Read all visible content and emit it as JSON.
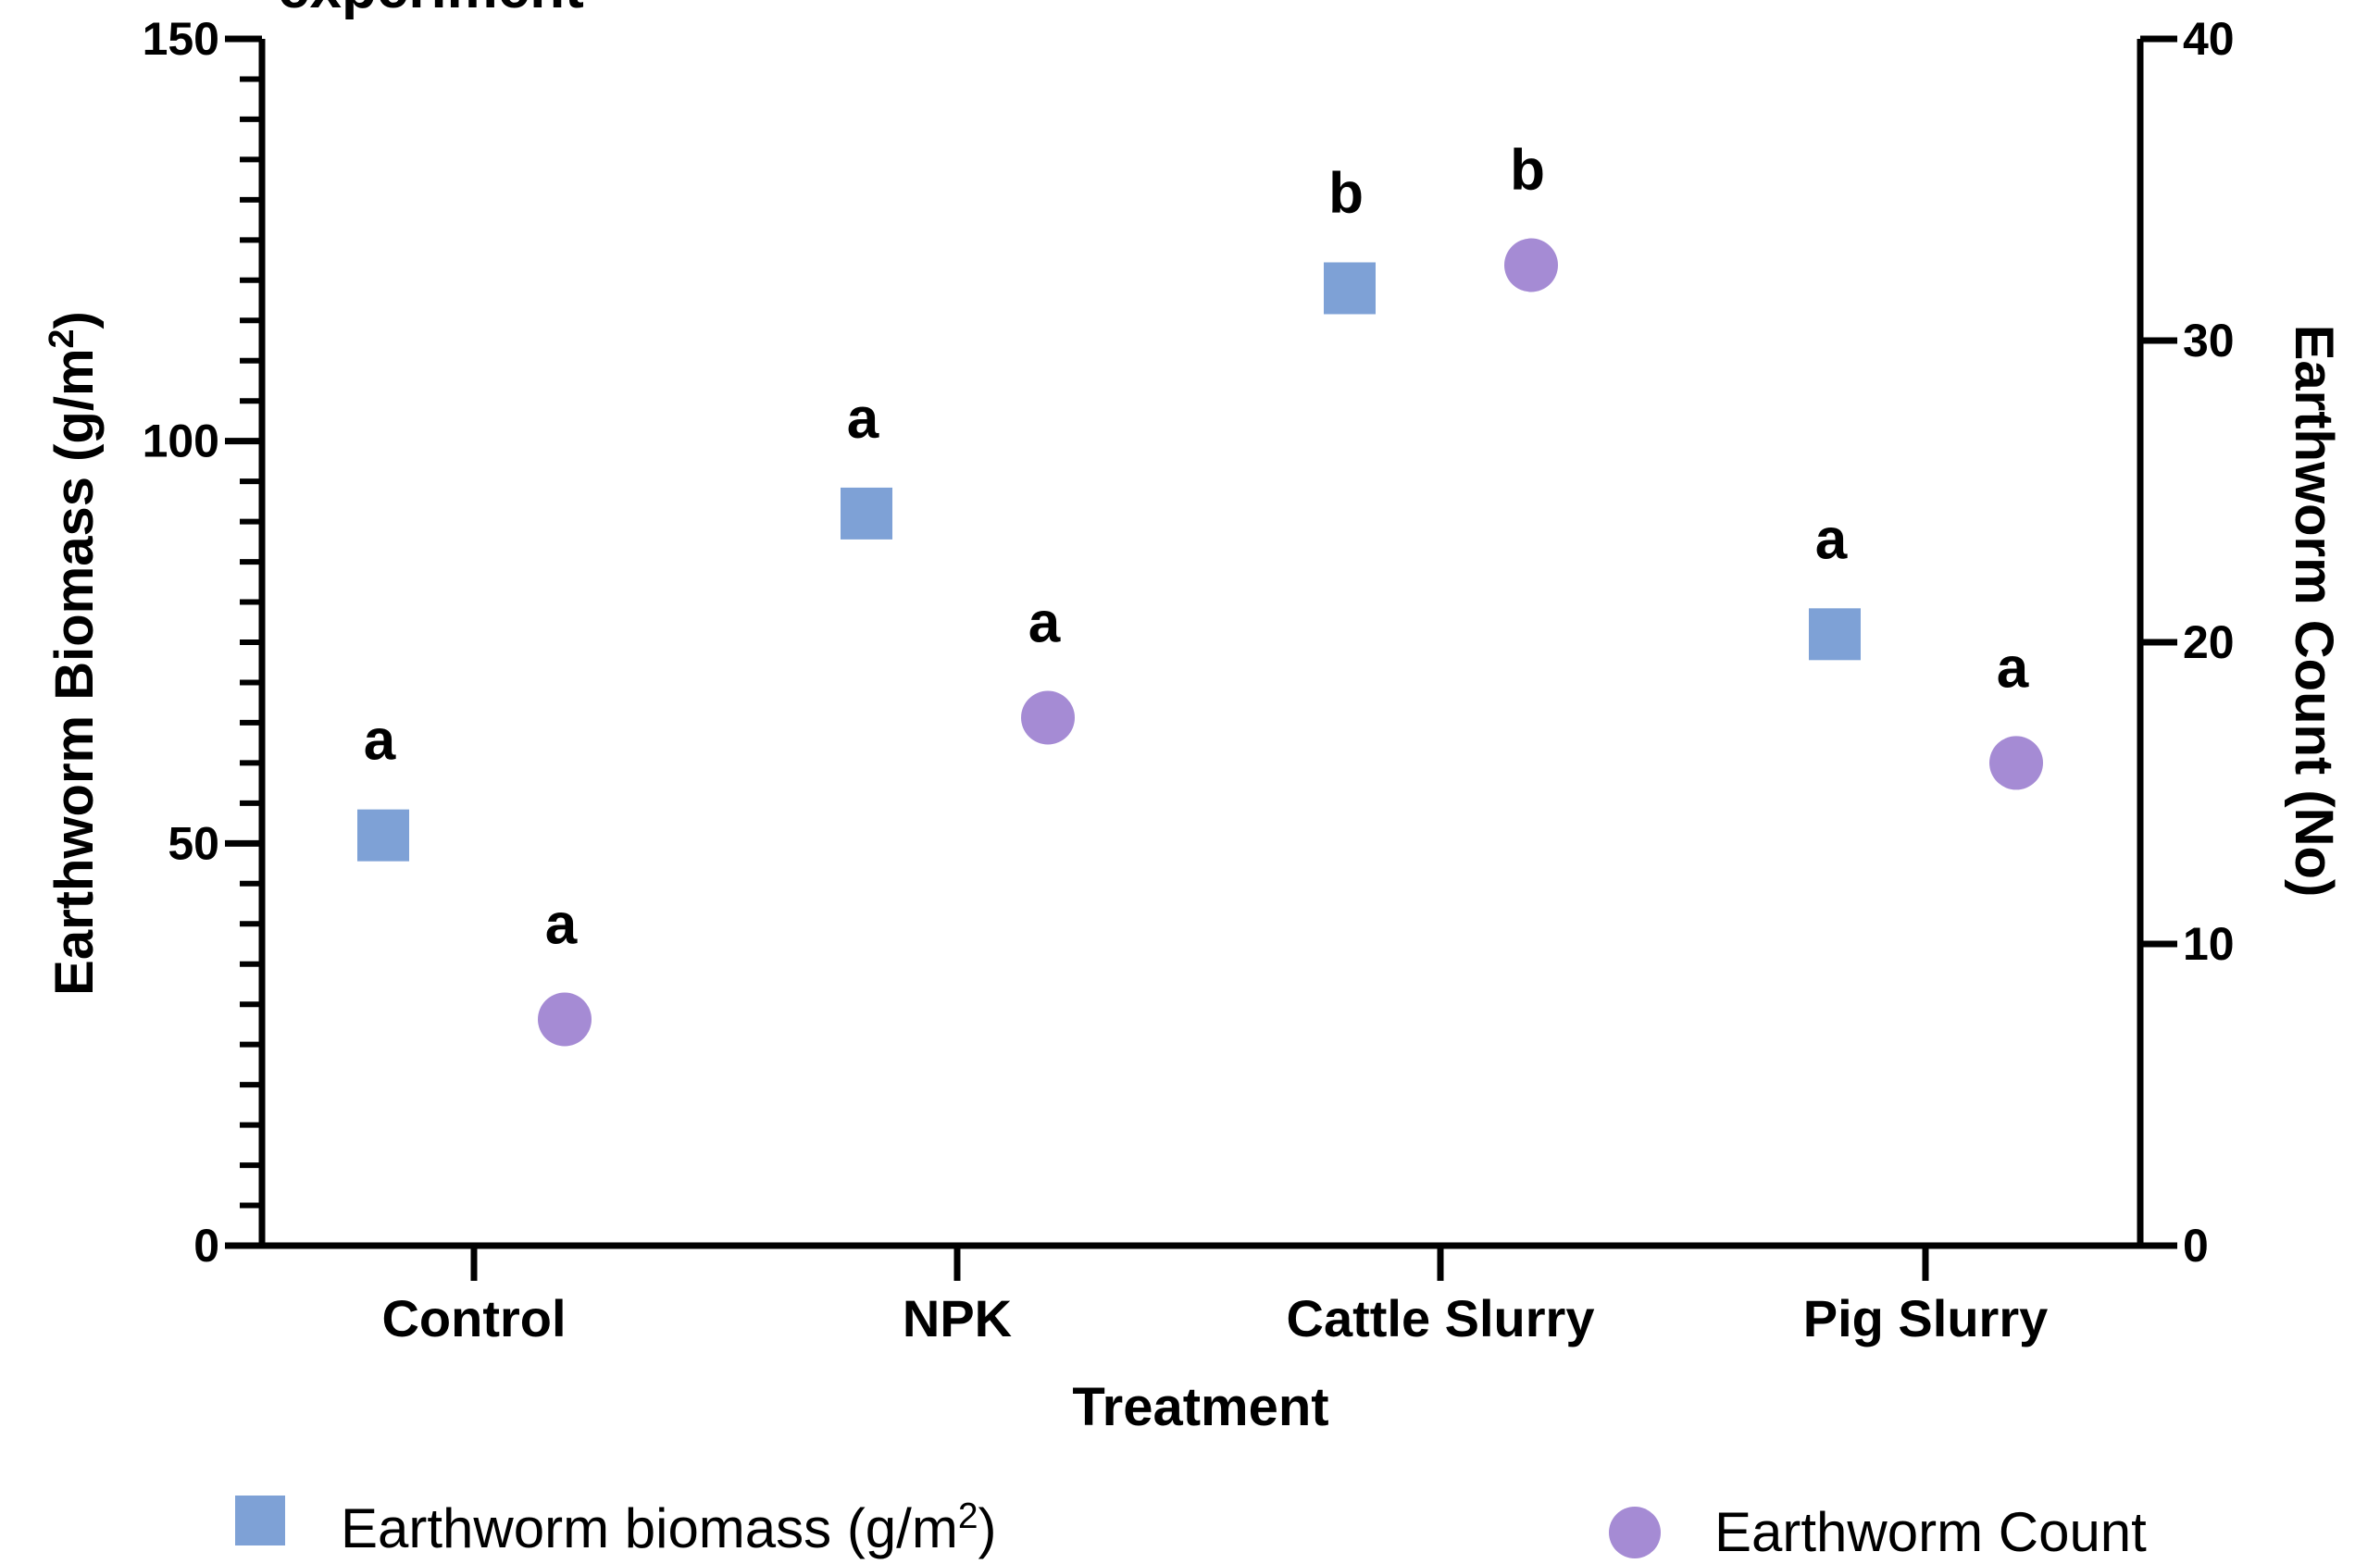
{
  "chart_data": {
    "type": "scatter",
    "title": "experiment",
    "categories": [
      "Control",
      "NPK",
      "Cattle Slurry",
      "Pig Slurry"
    ],
    "xlabel": "Treatment",
    "ylabel": "Earthworm Biomass (g/m2)",
    "ylabel_parts": {
      "main": "Earthworm Biomass (g/m",
      "sup": "2",
      "end": ")"
    },
    "y2label": "Earthworm Count (No)",
    "ylim": [
      0,
      150
    ],
    "y2lim": [
      0,
      40
    ],
    "y_ticks": [
      0,
      50,
      100,
      150
    ],
    "y2_ticks": [
      0,
      10,
      20,
      30,
      40
    ],
    "grid": false,
    "legend_position": "bottom",
    "series": [
      {
        "name": "Earthworm biomass (g/m2)",
        "legend_parts": {
          "main": "Earthworm biomass (g/m",
          "sup": "2",
          "end": ")"
        },
        "axis": "left",
        "marker": "square",
        "color": "#7ea1d6",
        "values": [
          51,
          91,
          119,
          76
        ],
        "significance": [
          "a",
          "a",
          "b",
          "a"
        ]
      },
      {
        "name": "Earthworm Count",
        "legend_parts": {
          "main": "Earthworm Count",
          "sup": "",
          "end": ""
        },
        "axis": "right",
        "marker": "circle",
        "color": "#a58bd4",
        "values": [
          7.5,
          17.5,
          32.5,
          16
        ],
        "significance": [
          "a",
          "a",
          "b",
          "a"
        ]
      }
    ]
  }
}
